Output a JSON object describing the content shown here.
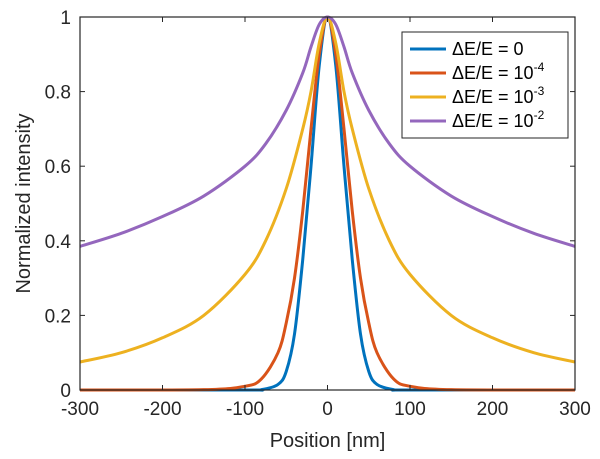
{
  "chart_data": {
    "type": "line",
    "xlabel": "Position [nm]",
    "ylabel": "Normalized intensity",
    "xlim": [
      -300,
      300
    ],
    "ylim": [
      0,
      1
    ],
    "xticks": [
      "-300",
      "-200",
      "-100",
      "0",
      "100",
      "200",
      "300"
    ],
    "yticks": [
      "0",
      "0.2",
      "0.4",
      "0.6",
      "0.8",
      "1"
    ],
    "grid": false,
    "legend_position": "top-right",
    "series": [
      {
        "name": "ΔE/E = 0",
        "name_base": "ΔE/E = 0",
        "name_sup": "",
        "color": "#0072BD",
        "x": [
          -300,
          -100,
          -80,
          -60,
          -50,
          -40,
          -30,
          -20,
          -10,
          0,
          10,
          20,
          30,
          40,
          50,
          60,
          80,
          100,
          300
        ],
        "y": [
          0,
          0,
          0.001,
          0.015,
          0.05,
          0.15,
          0.35,
          0.6,
          0.87,
          1,
          0.87,
          0.6,
          0.35,
          0.15,
          0.05,
          0.015,
          0.001,
          0,
          0
        ]
      },
      {
        "name": "ΔE/E = 10^-4",
        "name_base": "ΔE/E = 10",
        "name_sup": "-4",
        "color": "#D95319",
        "x": [
          -300,
          -150,
          -100,
          -80,
          -60,
          -50,
          -40,
          -30,
          -20,
          -10,
          0,
          10,
          20,
          30,
          40,
          50,
          60,
          80,
          100,
          150,
          300
        ],
        "y": [
          0,
          0.001,
          0.01,
          0.03,
          0.1,
          0.18,
          0.3,
          0.48,
          0.7,
          0.9,
          1,
          0.9,
          0.7,
          0.48,
          0.3,
          0.18,
          0.1,
          0.03,
          0.01,
          0.001,
          0
        ]
      },
      {
        "name": "ΔE/E = 10^-3",
        "name_base": "ΔE/E = 10",
        "name_sup": "-3",
        "color": "#EDB120",
        "x": [
          -300,
          -250,
          -200,
          -150,
          -100,
          -75,
          -50,
          -30,
          -20,
          -10,
          0,
          10,
          20,
          30,
          50,
          75,
          100,
          150,
          200,
          250,
          300
        ],
        "y": [
          0.075,
          0.1,
          0.14,
          0.2,
          0.31,
          0.4,
          0.54,
          0.7,
          0.8,
          0.93,
          1,
          0.93,
          0.8,
          0.7,
          0.54,
          0.4,
          0.31,
          0.2,
          0.14,
          0.1,
          0.075
        ]
      },
      {
        "name": "ΔE/E = 10^-2",
        "name_base": "ΔE/E = 10",
        "name_sup": "-2",
        "color": "#9467BD",
        "x": [
          -300,
          -250,
          -200,
          -150,
          -100,
          -75,
          -50,
          -30,
          -20,
          -10,
          0,
          10,
          20,
          30,
          50,
          75,
          100,
          150,
          200,
          250,
          300
        ],
        "y": [
          0.385,
          0.42,
          0.465,
          0.52,
          0.6,
          0.66,
          0.75,
          0.85,
          0.92,
          0.98,
          1,
          0.98,
          0.92,
          0.85,
          0.75,
          0.66,
          0.6,
          0.52,
          0.465,
          0.42,
          0.385
        ]
      }
    ]
  }
}
